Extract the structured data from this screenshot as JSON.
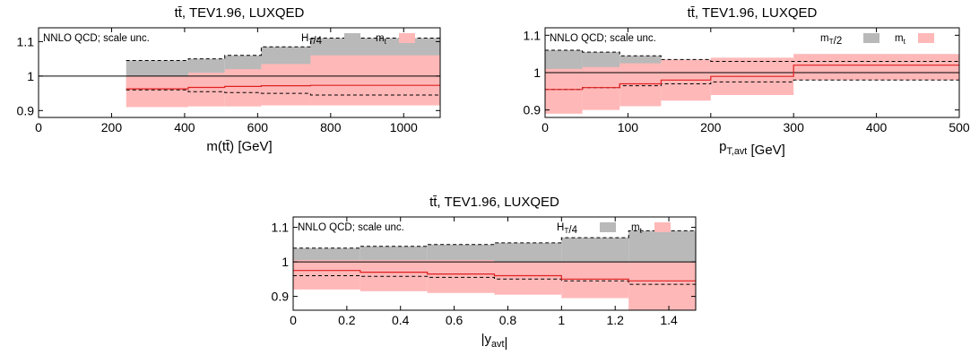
{
  "chart_data": [
    {
      "type": "step",
      "title": "tt̄, TEV1.96, LUXQED",
      "xlabel": "m(tt̄) [GeV]",
      "xlabel_parts": [
        [
          "m(tt̄) [GeV]",
          "normal"
        ]
      ],
      "annotation": "NNLO QCD; scale unc.",
      "xlim": [
        0,
        1100
      ],
      "ylim": [
        0.88,
        1.14
      ],
      "xticks": [
        0,
        200,
        400,
        600,
        800,
        1000
      ],
      "xtick_labels": [
        "0",
        "200",
        "400",
        "600",
        "800",
        "1000"
      ],
      "yticks": [
        0.9,
        1,
        1.1
      ],
      "ytick_labels": [
        "0.9",
        "1",
        "1.1"
      ],
      "reference_line": 1,
      "bins": [
        240,
        410,
        510,
        610,
        745,
        1100
      ],
      "series": [
        {
          "name": "H_T/4",
          "label_parts": [
            [
              "H",
              "normal"
            ],
            [
              "T",
              "sub"
            ],
            [
              "/4",
              "normal"
            ]
          ],
          "color": "#b9b9b9",
          "central": [
            1,
            1,
            1,
            1,
            1
          ],
          "upper": [
            1.045,
            1.05,
            1.06,
            1.085,
            1.11
          ],
          "lower": [
            0.96,
            0.955,
            0.952,
            0.95,
            0.945
          ]
        },
        {
          "name": "m_t",
          "label_parts": [
            [
              "m",
              "normal"
            ],
            [
              "t",
              "sub"
            ]
          ],
          "color": "#ffb8b8",
          "central": [
            0.963,
            0.967,
            0.97,
            0.972,
            0.973
          ],
          "upper": [
            1.0,
            1.01,
            1.02,
            1.035,
            1.06
          ],
          "lower": [
            0.91,
            0.912,
            0.912,
            0.915,
            0.915
          ]
        }
      ]
    },
    {
      "type": "step",
      "title": "tt̄, TEV1.96, LUXQED",
      "xlabel": "p_T,avt [GeV]",
      "xlabel_parts": [
        [
          "p",
          "normal"
        ],
        [
          "T,avt",
          "sub"
        ],
        [
          " [GeV]",
          "normal"
        ]
      ],
      "annotation": "NNLO QCD; scale unc.",
      "xlim": [
        0,
        500
      ],
      "ylim": [
        0.88,
        1.12
      ],
      "xticks": [
        0,
        100,
        200,
        300,
        400,
        500
      ],
      "xtick_labels": [
        "0",
        "100",
        "200",
        "300",
        "400",
        "500"
      ],
      "yticks": [
        0.9,
        1,
        1.1
      ],
      "ytick_labels": [
        "0.9",
        "1",
        "1.1"
      ],
      "reference_line": 1,
      "bins": [
        0,
        45,
        90,
        140,
        200,
        300,
        500
      ],
      "series": [
        {
          "name": "m_T/2",
          "label_parts": [
            [
              "m",
              "normal"
            ],
            [
              "T",
              "sub"
            ],
            [
              "/2",
              "normal"
            ]
          ],
          "color": "#b9b9b9",
          "central": [
            1,
            1,
            1,
            1,
            1,
            1
          ],
          "upper": [
            1.06,
            1.055,
            1.045,
            1.035,
            1.03,
            1.03
          ],
          "lower": [
            0.955,
            0.96,
            0.965,
            0.97,
            0.975,
            0.98
          ]
        },
        {
          "name": "m_t",
          "label_parts": [
            [
              "m",
              "normal"
            ],
            [
              "t",
              "sub"
            ]
          ],
          "color": "#ffb8b8",
          "central": [
            0.955,
            0.96,
            0.97,
            0.98,
            0.99,
            1.02
          ],
          "upper": [
            1.01,
            1.015,
            1.025,
            1.035,
            1.04,
            1.05
          ],
          "lower": [
            0.89,
            0.9,
            0.91,
            0.925,
            0.94,
            0.98
          ]
        }
      ]
    },
    {
      "type": "step",
      "title": "tt̄, TEV1.96, LUXQED",
      "xlabel": "|y_avt|",
      "xlabel_parts": [
        [
          "|y",
          "normal"
        ],
        [
          "avt",
          "sub"
        ],
        [
          "|",
          "normal"
        ]
      ],
      "annotation": "NNLO QCD; scale unc.",
      "xlim": [
        0,
        1.5
      ],
      "ylim": [
        0.86,
        1.13
      ],
      "xticks": [
        0,
        0.2,
        0.4,
        0.6,
        0.8,
        1,
        1.2,
        1.4
      ],
      "xtick_labels": [
        "0",
        "0.2",
        "0.4",
        "0.6",
        "0.8",
        "1",
        "1.2",
        "1.4"
      ],
      "yticks": [
        0.9,
        1,
        1.1
      ],
      "ytick_labels": [
        "0.9",
        "1",
        "1.1"
      ],
      "reference_line": 1,
      "bins": [
        0,
        0.25,
        0.5,
        0.75,
        1.0,
        1.25,
        1.5
      ],
      "series": [
        {
          "name": "H_T/4",
          "label_parts": [
            [
              "H",
              "normal"
            ],
            [
              "T",
              "sub"
            ],
            [
              "/4",
              "normal"
            ]
          ],
          "color": "#b9b9b9",
          "central": [
            1,
            1,
            1,
            1,
            1,
            1
          ],
          "upper": [
            1.04,
            1.045,
            1.05,
            1.055,
            1.07,
            1.09
          ],
          "lower": [
            0.96,
            0.958,
            0.955,
            0.95,
            0.945,
            0.935
          ]
        },
        {
          "name": "m_t",
          "label_parts": [
            [
              "m",
              "normal"
            ],
            [
              "t",
              "sub"
            ]
          ],
          "color": "#ffb8b8",
          "central": [
            0.975,
            0.97,
            0.965,
            0.96,
            0.95,
            0.945
          ],
          "upper": [
            1.005,
            1.005,
            1.005,
            1.0,
            1.0,
            1.0
          ],
          "lower": [
            0.92,
            0.915,
            0.91,
            0.905,
            0.895,
            0.86
          ]
        }
      ]
    }
  ]
}
